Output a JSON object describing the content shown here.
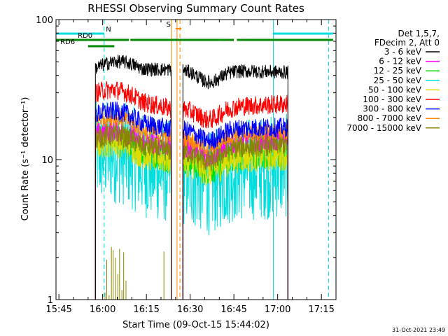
{
  "chart_data": {
    "type": "line",
    "title": "RHESSI Observing Summary Count Rates",
    "xlabel": "Start Time (09-Oct-15 15:44:02)",
    "ylabel": "Count Rate (s⁻¹ detector⁻¹)",
    "yscale": "log",
    "xlim_minutes_after_1544": [
      0,
      96
    ],
    "ylim": [
      1,
      100
    ],
    "x_ticks": [
      "15:45",
      "16:00",
      "16:15",
      "16:30",
      "16:45",
      "17:00",
      "17:15"
    ],
    "x_tick_minutes": [
      1,
      16,
      31,
      46,
      61,
      76,
      91
    ],
    "y_ticks": [
      "1",
      "10",
      "100"
    ],
    "y_tick_values": [
      1,
      10,
      100
    ],
    "legend_header": [
      "Det 1,5,7,",
      "FDecim 2, Att 0"
    ],
    "series": [
      {
        "name": "3 - 6 keV",
        "color": "#000000",
        "level": 45,
        "mid": 44,
        "late": 42,
        "noise": 0.05
      },
      {
        "name": "6 - 12 keV",
        "color": "#ff00ff",
        "level": 15,
        "mid": 12.5,
        "late": 14,
        "noise": 0.08
      },
      {
        "name": "12 - 25 keV",
        "color": "#00dd00",
        "level": 14,
        "mid": 10,
        "late": 11,
        "noise": 0.1
      },
      {
        "name": "25 - 50 keV",
        "color": "#00dddd",
        "level": 11,
        "mid": 8,
        "late": 9,
        "noise": 0.15
      },
      {
        "name": "50 - 100 keV",
        "color": "#dddd00",
        "level": 13,
        "mid": 10,
        "late": 11,
        "noise": 0.12
      },
      {
        "name": "100 - 300 keV",
        "color": "#ff0000",
        "level": 30,
        "mid": 23,
        "late": 25,
        "noise": 0.07
      },
      {
        "name": "300 - 800 keV",
        "color": "#0000ff",
        "level": 21,
        "mid": 16.5,
        "late": 17,
        "noise": 0.07
      },
      {
        "name": "800 - 7000 keV",
        "color": "#ff8800",
        "level": 19,
        "mid": 14.5,
        "late": 16,
        "noise": 0.06
      },
      {
        "name": "7000 - 15000 keV",
        "color": "#888800",
        "level": 14,
        "mid": 11.5,
        "late": 13,
        "noise": 0.08
      }
    ],
    "data_intervals_minutes": [
      [
        13.5,
        39.5
      ],
      [
        43.5,
        79.5
      ]
    ],
    "flags": [
      {
        "label": "N",
        "color": "#00dddd",
        "segments": [
          [
            0,
            16.5
          ],
          [
            74.5,
            95
          ]
        ]
      },
      {
        "label": "RD0",
        "color": "#008800",
        "segments": [
          [
            0,
            11
          ],
          [
            11,
            25
          ],
          [
            25.5,
            56
          ],
          [
            56,
            61
          ],
          [
            62,
            95
          ]
        ]
      },
      {
        "label": "RD6",
        "color": "#008800",
        "segments": [
          [
            11,
            20
          ]
        ]
      },
      {
        "label": "S",
        "color": "#ff8800",
        "segments": [
          [
            41,
            43
          ]
        ]
      }
    ],
    "vertical_markers": [
      {
        "color": "#00dddd",
        "style": "solid",
        "minute": 0
      },
      {
        "color": "#00dddd",
        "style": "dashed",
        "minute": 16.5
      },
      {
        "color": "#00dddd",
        "style": "solid",
        "minute": 74.5
      },
      {
        "color": "#00dddd",
        "style": "dashed",
        "minute": 93.5
      },
      {
        "color": "#ff8800",
        "style": "solid",
        "minute": 39.5
      },
      {
        "color": "#ff8800",
        "style": "solid",
        "minute": 41.5
      },
      {
        "color": "#ff8800",
        "style": "dashed",
        "minute": 42.5
      }
    ]
  },
  "footer": {
    "timestamp": "31-Oct-2021 23:49"
  }
}
